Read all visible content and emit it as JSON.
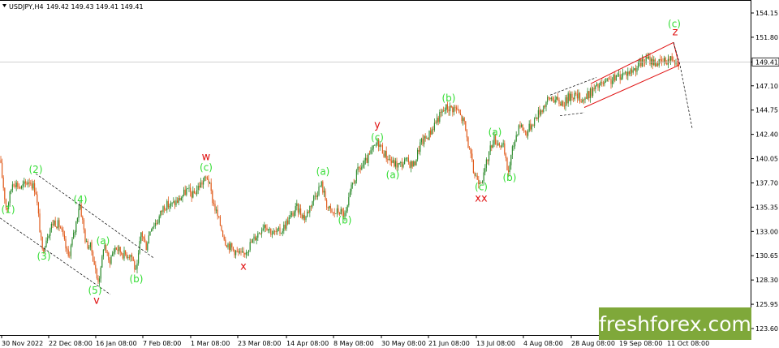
{
  "header": {
    "symbol": "USDJPY,H4",
    "ohlc": "149.42 149.43 149.41 149.41"
  },
  "watermark": {
    "text": "freshforex.com",
    "background": "#7fa83a",
    "text_color": "#ffffff"
  },
  "colors": {
    "up_candle": "#2e8b2e",
    "down_candle": "#e05a1a",
    "wave_label": "#33dd33",
    "degree_label": "#e01010",
    "channel": "#e01010",
    "dashed": "#000000",
    "price_box": "#ffffff"
  },
  "chart_data": {
    "type": "candlestick",
    "symbol": "USDJPY",
    "timeframe": "H4",
    "current_price": 149.41,
    "y_ticks": [
      "154.15",
      "151.80",
      "149.41",
      "147.10",
      "144.75",
      "142.40",
      "140.05",
      "137.70",
      "135.35",
      "133.00",
      "130.65",
      "128.30",
      "125.95",
      "123.60"
    ],
    "ylim": [
      123.6,
      155.3
    ],
    "x_ticks": [
      "30 Nov 2022",
      "22 Dec 08:00",
      "16 Jan 08:00",
      "7 Feb 08:00",
      "1 Mar 08:00",
      "23 Mar 08:00",
      "14 Apr 08:00",
      "8 May 08:00",
      "30 May 08:00",
      "21 Jun 08:00",
      "13 Jul 08:00",
      "4 Aug 08:00",
      "28 Aug 08:00",
      "19 Sep 08:00",
      "11 Oct 08:00"
    ],
    "price_path": [
      [
        0,
        139.9
      ],
      [
        8,
        135.0
      ],
      [
        16,
        137.9
      ],
      [
        26,
        137.2
      ],
      [
        36,
        138.0
      ],
      [
        44,
        137.0
      ],
      [
        52,
        131.0
      ],
      [
        58,
        132.6
      ],
      [
        66,
        134.0
      ],
      [
        74,
        133.5
      ],
      [
        84,
        130.5
      ],
      [
        92,
        133.0
      ],
      [
        98,
        135.9
      ],
      [
        106,
        131.8
      ],
      [
        112,
        131.5
      ],
      [
        116,
        130.0
      ],
      [
        120,
        128.2
      ],
      [
        124,
        129.0
      ],
      [
        128,
        132.0
      ],
      [
        134,
        130.0
      ],
      [
        142,
        131.5
      ],
      [
        152,
        130.8
      ],
      [
        162,
        130.8
      ],
      [
        168,
        128.8
      ],
      [
        174,
        133.0
      ],
      [
        180,
        131.5
      ],
      [
        186,
        133.5
      ],
      [
        194,
        134.0
      ],
      [
        202,
        135.5
      ],
      [
        212,
        135.6
      ],
      [
        220,
        136.0
      ],
      [
        230,
        137.0
      ],
      [
        238,
        136.5
      ],
      [
        246,
        137.5
      ],
      [
        256,
        138.3
      ],
      [
        262,
        136.0
      ],
      [
        270,
        134.0
      ],
      [
        278,
        132.0
      ],
      [
        288,
        131.2
      ],
      [
        298,
        130.6
      ],
      [
        306,
        131.5
      ],
      [
        316,
        132.6
      ],
      [
        326,
        133.8
      ],
      [
        336,
        132.8
      ],
      [
        346,
        133.0
      ],
      [
        356,
        134.2
      ],
      [
        366,
        135.3
      ],
      [
        376,
        134.3
      ],
      [
        386,
        136.2
      ],
      [
        396,
        137.6
      ],
      [
        404,
        135.3
      ],
      [
        410,
        134.7
      ],
      [
        418,
        135.0
      ],
      [
        426,
        134.5
      ],
      [
        434,
        137.5
      ],
      [
        442,
        139.0
      ],
      [
        450,
        139.6
      ],
      [
        458,
        140.7
      ],
      [
        466,
        141.7
      ],
      [
        474,
        140.5
      ],
      [
        484,
        139.6
      ],
      [
        492,
        139.4
      ],
      [
        500,
        139.8
      ],
      [
        510,
        139.4
      ],
      [
        518,
        141.5
      ],
      [
        528,
        142.3
      ],
      [
        538,
        143.8
      ],
      [
        550,
        145.0
      ],
      [
        562,
        144.9
      ],
      [
        572,
        143.5
      ],
      [
        578,
        141.0
      ],
      [
        584,
        138.6
      ],
      [
        590,
        138.0
      ],
      [
        596,
        138.3
      ],
      [
        602,
        140.5
      ],
      [
        608,
        142.0
      ],
      [
        614,
        141.6
      ],
      [
        620,
        141.2
      ],
      [
        626,
        138.6
      ],
      [
        632,
        141.1
      ],
      [
        640,
        143.5
      ],
      [
        648,
        142.5
      ],
      [
        656,
        143.5
      ],
      [
        664,
        144.5
      ],
      [
        674,
        145.6
      ],
      [
        680,
        146.0
      ],
      [
        688,
        145.5
      ],
      [
        696,
        145.5
      ],
      [
        704,
        146.3
      ],
      [
        712,
        146.0
      ],
      [
        720,
        145.8
      ],
      [
        728,
        146.5
      ],
      [
        738,
        147.1
      ],
      [
        748,
        147.4
      ],
      [
        758,
        147.8
      ],
      [
        768,
        148.3
      ],
      [
        778,
        148.5
      ],
      [
        788,
        149.2
      ],
      [
        798,
        149.7
      ],
      [
        806,
        149.4
      ],
      [
        814,
        149.3
      ],
      [
        822,
        149.6
      ],
      [
        830,
        149.8
      ],
      [
        836,
        149.41
      ]
    ]
  },
  "wave_labels": {
    "green": [
      {
        "text": "(1)",
        "at": [
          10,
          135.1
        ]
      },
      {
        "text": "(2)",
        "at": [
          44,
          139.0
        ]
      },
      {
        "text": "(3)",
        "at": [
          54,
          130.6
        ]
      },
      {
        "text": "(4)",
        "at": [
          99,
          136.1
        ]
      },
      {
        "text": "(a)",
        "at": [
          127,
          132.1
        ]
      },
      {
        "text": "(5)",
        "at": [
          117,
          127.3
        ]
      },
      {
        "text": "(b)",
        "at": [
          168,
          128.4
        ]
      },
      {
        "text": "(c)",
        "at": [
          254,
          139.2
        ]
      },
      {
        "text": "(a)",
        "at": [
          398,
          138.8
        ]
      },
      {
        "text": "(b)",
        "at": [
          425,
          134.1
        ]
      },
      {
        "text": "(c)",
        "at": [
          465,
          142.1
        ]
      },
      {
        "text": "(a)",
        "at": [
          484,
          138.5
        ]
      },
      {
        "text": "(b)",
        "at": [
          553,
          145.9
        ]
      },
      {
        "text": "(c)",
        "at": [
          593,
          137.3
        ]
      },
      {
        "text": "(a)",
        "at": [
          610,
          142.6
        ]
      },
      {
        "text": "(b)",
        "at": [
          628,
          138.2
        ]
      },
      {
        "text": "(c)",
        "at": [
          831,
          153.1
        ]
      }
    ],
    "red": [
      {
        "text": "v",
        "at": [
          119,
          126.3
        ]
      },
      {
        "text": "w",
        "at": [
          254,
          140.2
        ]
      },
      {
        "text": "x",
        "at": [
          300,
          129.6
        ]
      },
      {
        "text": "y",
        "at": [
          465,
          143.3
        ]
      },
      {
        "text": "xx",
        "at": [
          593,
          136.2
        ]
      },
      {
        "text": "z",
        "at": [
          832,
          152.3
        ]
      }
    ]
  }
}
